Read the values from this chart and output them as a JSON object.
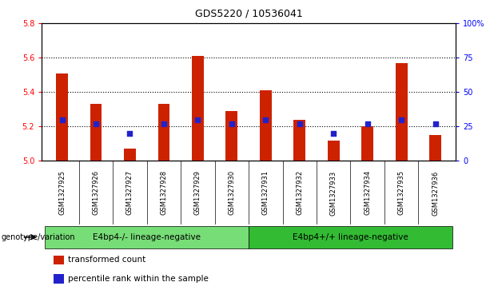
{
  "title": "GDS5220 / 10536041",
  "samples": [
    "GSM1327925",
    "GSM1327926",
    "GSM1327927",
    "GSM1327928",
    "GSM1327929",
    "GSM1327930",
    "GSM1327931",
    "GSM1327932",
    "GSM1327933",
    "GSM1327934",
    "GSM1327935",
    "GSM1327936"
  ],
  "transformed_count": [
    5.51,
    5.33,
    5.07,
    5.33,
    5.61,
    5.29,
    5.41,
    5.24,
    5.12,
    5.2,
    5.57,
    5.15
  ],
  "percentile_rank": [
    30,
    27,
    20,
    27,
    30,
    27,
    30,
    27,
    20,
    27,
    30,
    27
  ],
  "ylim_left": [
    5.0,
    5.8
  ],
  "ylim_right": [
    0,
    100
  ],
  "yticks_left": [
    5.0,
    5.2,
    5.4,
    5.6,
    5.8
  ],
  "yticks_right": [
    0,
    25,
    50,
    75,
    100
  ],
  "ytick_labels_right": [
    "0",
    "25",
    "50",
    "75",
    "100%"
  ],
  "bar_color": "#cc2200",
  "dot_color": "#2222cc",
  "bar_bottom": 5.0,
  "bar_width": 0.35,
  "groups": [
    {
      "label": "E4bp4-/- lineage-negative",
      "start": 0,
      "end": 6,
      "color": "#77dd77"
    },
    {
      "label": "E4bp4+/+ lineage-negative",
      "start": 6,
      "end": 12,
      "color": "#33bb33"
    }
  ],
  "group_row_label": "genotype/variation",
  "legend_items": [
    {
      "label": "transformed count",
      "color": "#cc2200"
    },
    {
      "label": "percentile rank within the sample",
      "color": "#2222cc"
    }
  ],
  "grid_yticks": [
    5.2,
    5.4,
    5.6
  ],
  "sample_bg_color": "#cccccc",
  "plot_bg": "white",
  "title_fontsize": 9,
  "tick_fontsize": 7,
  "sample_fontsize": 6
}
